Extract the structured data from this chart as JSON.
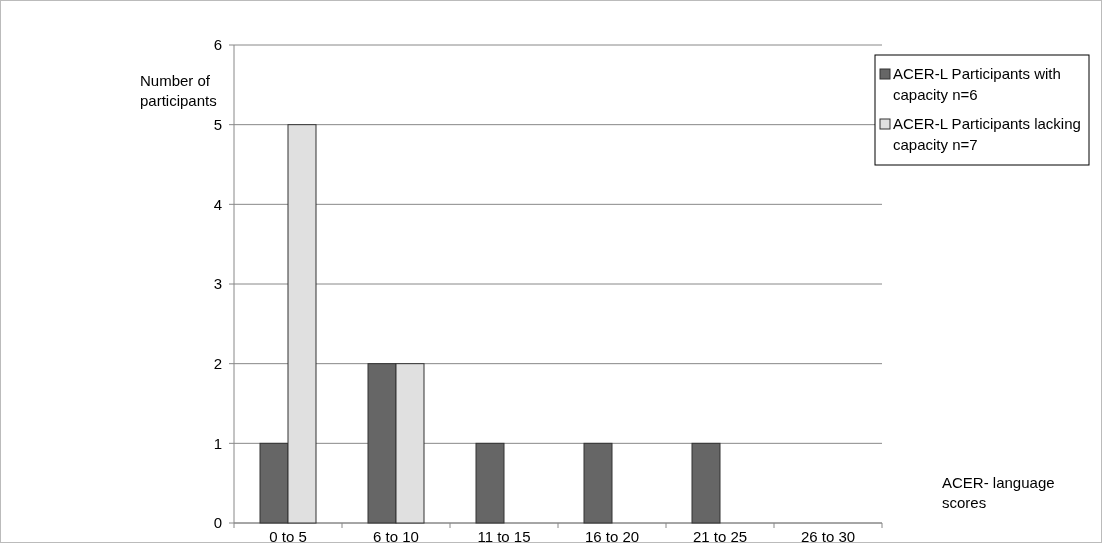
{
  "chart_data": {
    "type": "bar",
    "xlabel": "ACER- language scores",
    "ylabel": "Number of participants",
    "categories": [
      "0 to 5",
      "6 to 10",
      "11 to 15",
      "16 to 20",
      "21 to 25",
      "26 to 30"
    ],
    "series": [
      {
        "name": "ACER-L Participants with capacity n=6",
        "color": "#666666",
        "values": [
          1,
          2,
          1,
          1,
          1,
          0
        ]
      },
      {
        "name": "ACER-L Participants lacking capacity n=7",
        "color": "#e0e0e0",
        "values": [
          5,
          2,
          0,
          0,
          0,
          0
        ]
      }
    ],
    "ylim": [
      0,
      6
    ],
    "yticks": [
      0,
      1,
      2,
      3,
      4,
      5,
      6
    ],
    "grid": "y",
    "legend": "top right"
  }
}
